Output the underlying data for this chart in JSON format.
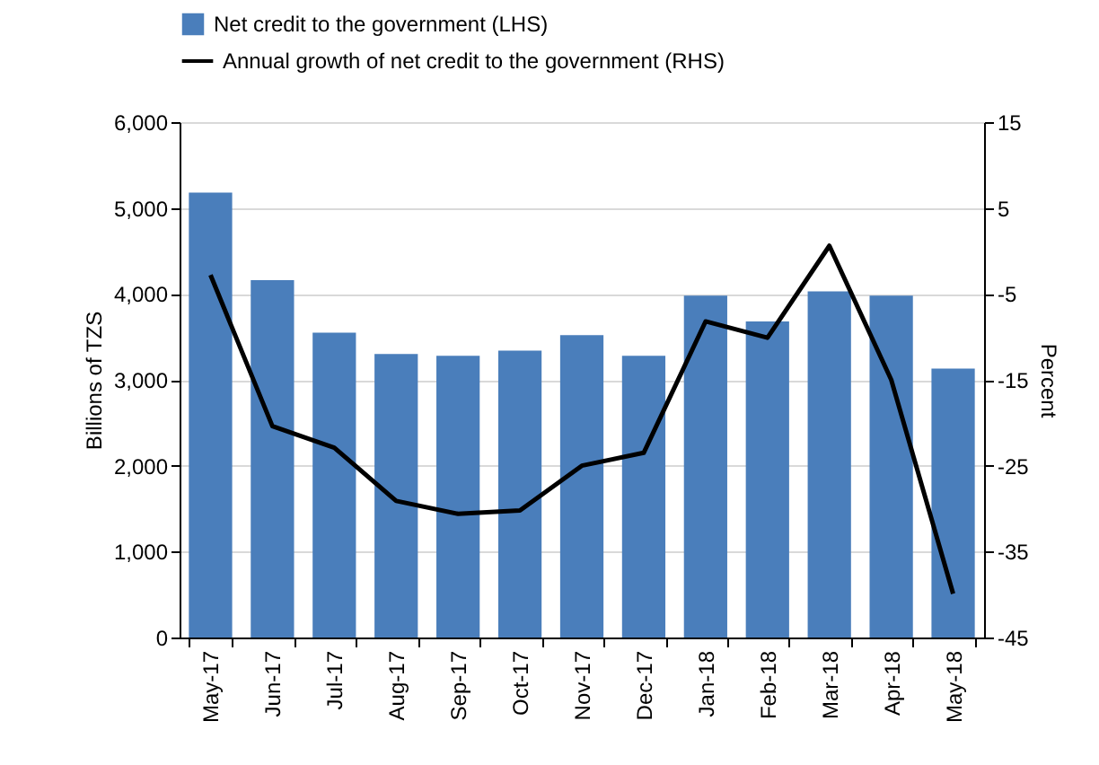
{
  "chart_data": {
    "type": "bar",
    "categories": [
      "May-17",
      "Jun-17",
      "Jul-17",
      "Aug-17",
      "Sep-17",
      "Oct-17",
      "Nov-17",
      "Dec-17",
      "Jan-18",
      "Feb-18",
      "Mar-18",
      "Apr-18",
      "May-18"
    ],
    "ylabel": "Billions of TZS",
    "y2label": "Percent",
    "series": [
      {
        "name": "Net credit to the government (LHS)",
        "color": "#4a7ebb",
        "values": [
          5180,
          4160,
          3550,
          3300,
          3280,
          3340,
          3520,
          3280,
          3980,
          3680,
          4030,
          3980,
          3130
        ]
      },
      {
        "name": "Annual growth of net credit to the government (RHS)",
        "type": "line",
        "axis": "y2",
        "color": "#000000",
        "values": [
          -2.8,
          -20.4,
          -22.9,
          -29.1,
          -30.6,
          -30.2,
          -25.0,
          -23.5,
          -8.2,
          -10.1,
          0.6,
          -15.0,
          -39.9
        ]
      }
    ],
    "ylim": [
      0,
      6000
    ],
    "yticks": [
      0,
      {
        "value": 1000,
        "label": "1,000"
      },
      {
        "value": 2000,
        "label": "2,000"
      },
      {
        "value": 3000,
        "label": "3,000"
      },
      {
        "value": 4000,
        "label": "4,000"
      },
      {
        "value": 5000,
        "label": "5,000"
      },
      {
        "value": 6000,
        "label": "6,000"
      }
    ],
    "y2lim": [
      -45,
      15
    ],
    "y2ticks": [
      -45,
      -35,
      -25,
      -15,
      -5,
      5,
      15
    ],
    "grid": "y",
    "legend": "top left"
  }
}
